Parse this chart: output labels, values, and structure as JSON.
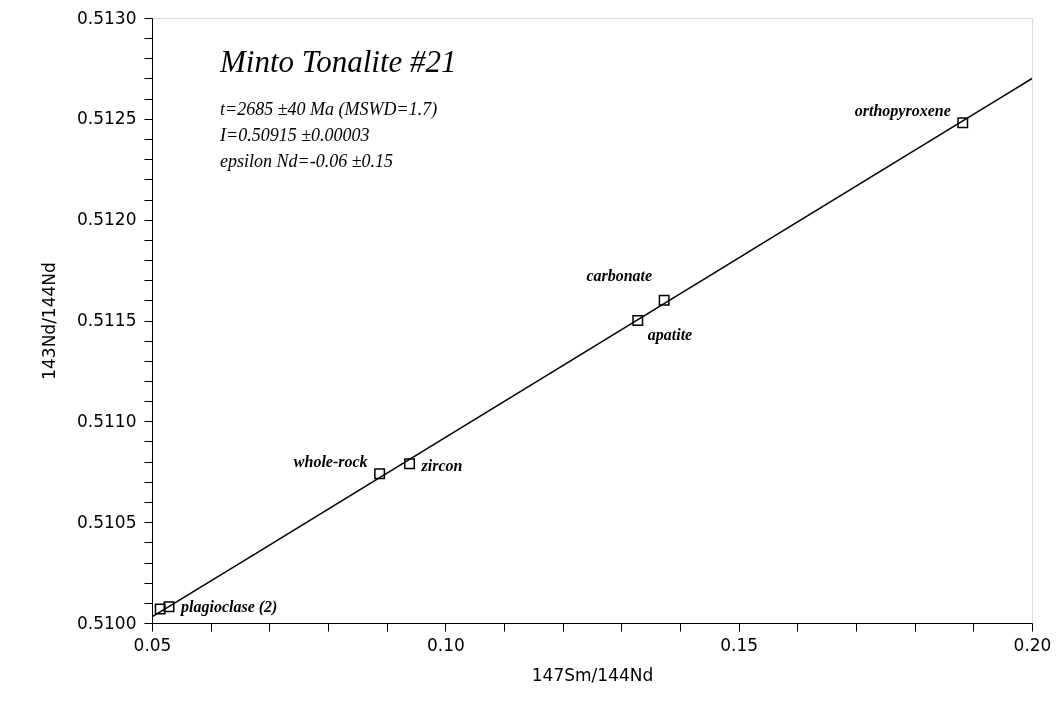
{
  "chart_data": {
    "type": "scatter",
    "title": "Minto Tonalite #21",
    "subtitle": [
      "t=2685 ±40 Ma (MSWD=1.7)",
      "I=0.50915 ±0.00003",
      "epsilon Nd=-0.06 ±0.15"
    ],
    "xlabel": "147Sm/144Nd",
    "ylabel": "143Nd/144Nd",
    "xlim": [
      0.05,
      0.2
    ],
    "ylim": [
      0.51,
      0.513
    ],
    "xticks": [
      {
        "value": 0.05,
        "label": "0.05"
      },
      {
        "value": 0.06,
        "label": null
      },
      {
        "value": 0.07,
        "label": null
      },
      {
        "value": 0.08,
        "label": null
      },
      {
        "value": 0.09,
        "label": null
      },
      {
        "value": 0.1,
        "label": "0.10"
      },
      {
        "value": 0.11,
        "label": null
      },
      {
        "value": 0.12,
        "label": null
      },
      {
        "value": 0.13,
        "label": null
      },
      {
        "value": 0.14,
        "label": null
      },
      {
        "value": 0.15,
        "label": "0.15"
      },
      {
        "value": 0.16,
        "label": null
      },
      {
        "value": 0.17,
        "label": null
      },
      {
        "value": 0.18,
        "label": null
      },
      {
        "value": 0.19,
        "label": null
      },
      {
        "value": 0.2,
        "label": "0.20"
      }
    ],
    "yticks": [
      {
        "value": 0.51,
        "label": "0.5100"
      },
      {
        "value": 0.5101,
        "label": null
      },
      {
        "value": 0.5102,
        "label": null
      },
      {
        "value": 0.5103,
        "label": null
      },
      {
        "value": 0.5104,
        "label": null
      },
      {
        "value": 0.5105,
        "label": "0.5105"
      },
      {
        "value": 0.5106,
        "label": null
      },
      {
        "value": 0.5107,
        "label": null
      },
      {
        "value": 0.5108,
        "label": null
      },
      {
        "value": 0.5109,
        "label": null
      },
      {
        "value": 0.511,
        "label": "0.5110"
      },
      {
        "value": 0.5111,
        "label": null
      },
      {
        "value": 0.5112,
        "label": null
      },
      {
        "value": 0.5113,
        "label": null
      },
      {
        "value": 0.5114,
        "label": null
      },
      {
        "value": 0.5115,
        "label": "0.5115"
      },
      {
        "value": 0.5116,
        "label": null
      },
      {
        "value": 0.5117,
        "label": null
      },
      {
        "value": 0.5118,
        "label": null
      },
      {
        "value": 0.5119,
        "label": null
      },
      {
        "value": 0.512,
        "label": "0.5120"
      },
      {
        "value": 0.5121,
        "label": null
      },
      {
        "value": 0.5122,
        "label": null
      },
      {
        "value": 0.5123,
        "label": null
      },
      {
        "value": 0.5124,
        "label": null
      },
      {
        "value": 0.5125,
        "label": "0.5125"
      },
      {
        "value": 0.5126,
        "label": null
      },
      {
        "value": 0.5127,
        "label": null
      },
      {
        "value": 0.5128,
        "label": null
      },
      {
        "value": 0.5129,
        "label": null
      },
      {
        "value": 0.513,
        "label": "0.5130"
      }
    ],
    "grid": false,
    "marker": "square",
    "series": [
      {
        "type": "line",
        "color": "#000000",
        "line_style": "solid",
        "marker": "none",
        "x": [
          0.05,
          0.2
        ],
        "values": [
          0.51003,
          0.5127
        ]
      },
      {
        "color": "#000000",
        "x": [
          0.0514,
          0.0529,
          0.0888,
          0.0939,
          0.1328,
          0.1373,
          0.1882
        ],
        "values": [
          0.51007,
          0.51008,
          0.51074,
          0.51079,
          0.5115,
          0.5116,
          0.51248
        ]
      }
    ],
    "annotations": [
      {
        "text": "plagioclase (2)",
        "x": 0.0529,
        "y": 0.51008
      },
      {
        "text": "whole-rock",
        "x": 0.0888,
        "y": 0.51074
      },
      {
        "text": "zircon",
        "x": 0.0939,
        "y": 0.51079
      },
      {
        "text": "carbonate",
        "x": 0.1373,
        "y": 0.5116
      },
      {
        "text": "apatite",
        "x": 0.1328,
        "y": 0.5115
      },
      {
        "text": "orthopyroxene",
        "x": 0.1882,
        "y": 0.51248
      }
    ]
  }
}
